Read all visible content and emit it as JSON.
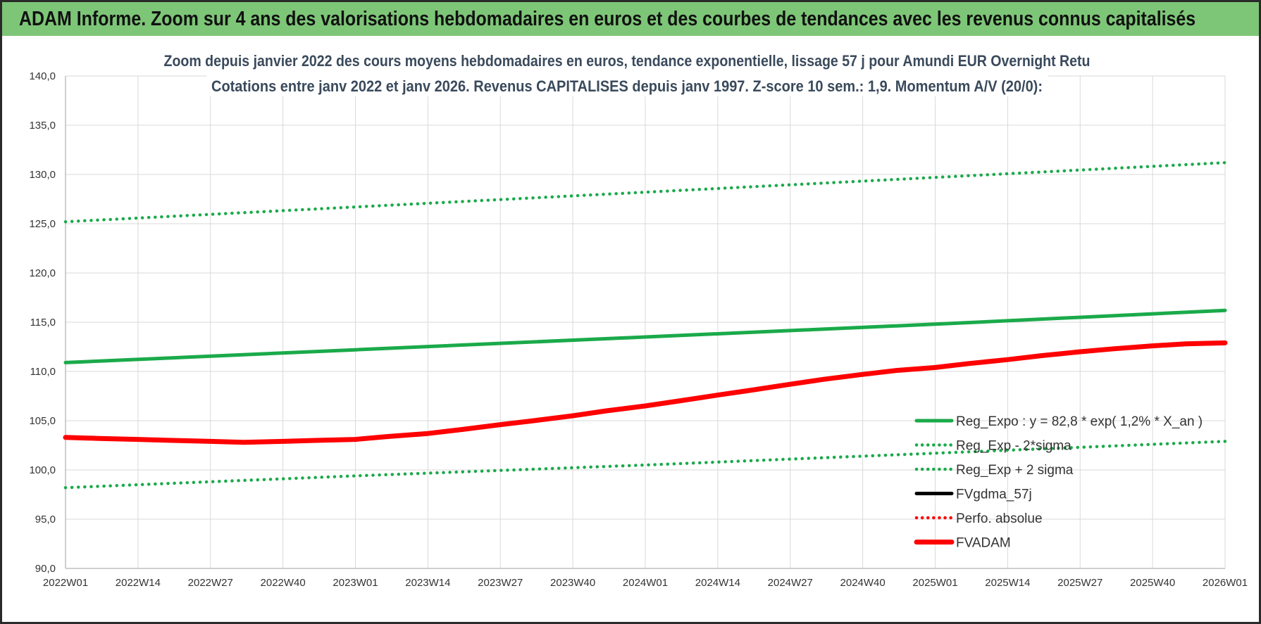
{
  "header": {
    "title": "ADAM Informe. Zoom sur 4 ans des valorisations hebdomadaires en euros et des courbes de tendances avec les revenus connus capitalisés"
  },
  "colors": {
    "header_bg": "#7dc677",
    "green": "#1aaa4a",
    "red": "#ff0000",
    "black": "#000000",
    "grid": "#d9d9d9"
  },
  "chart_data": {
    "type": "line",
    "title": "Zoom depuis janvier 2022 des cours moyens hebdomadaires en euros, tendance exponentielle, lissage 57 j pour Amundi EUR Overnight Retu",
    "subtitle": "Cotations entre janv 2022 et janv 2026. Revenus CAPITALISES depuis janv 1997. Z-score 10 sem.: 1,9. Momentum A/V (20/0):",
    "x_tick_labels": [
      "2022W01",
      "2022W14",
      "2022W27",
      "2022W40",
      "2023W01",
      "2023W14",
      "2023W27",
      "2023W40",
      "2024W01",
      "2024W14",
      "2024W27",
      "2024W40",
      "2025W01",
      "2025W14",
      "2025W27",
      "2025W40",
      "2026W01"
    ],
    "y_tick_labels": [
      "90,0",
      "95,0",
      "100,0",
      "105,0",
      "110,0",
      "115,0",
      "120,0",
      "125,0",
      "130,0",
      "135,0",
      "140,0"
    ],
    "ylim": [
      90,
      140
    ],
    "grid": true,
    "legend_position": "bottom-right",
    "series": [
      {
        "name": "Reg_Expo : y = 82,8 * exp( 1,2% *  X_an )",
        "color": "#1aaa4a",
        "style": "solid",
        "points": [
          [
            "2022W01",
            110.9
          ],
          [
            "2023W01",
            112.2
          ],
          [
            "2024W01",
            113.5
          ],
          [
            "2025W01",
            114.8
          ],
          [
            "2026W01",
            116.2
          ]
        ]
      },
      {
        "name": "Reg_Exp - 2*sigma",
        "color": "#1aaa4a",
        "style": "dotted",
        "points": [
          [
            "2022W01",
            98.2
          ],
          [
            "2023W01",
            99.4
          ],
          [
            "2024W01",
            100.5
          ],
          [
            "2025W01",
            101.7
          ],
          [
            "2026W01",
            102.9
          ]
        ]
      },
      {
        "name": "Reg_Exp + 2 sigma",
        "color": "#1aaa4a",
        "style": "dotted",
        "points": [
          [
            "2022W01",
            125.2
          ],
          [
            "2023W01",
            126.7
          ],
          [
            "2024W01",
            128.2
          ],
          [
            "2025W01",
            129.7
          ],
          [
            "2026W01",
            131.2
          ]
        ]
      },
      {
        "name": "FVgdma_57j",
        "color": "#000000",
        "style": "solid",
        "points": [
          [
            "2022W40",
            102.9
          ],
          [
            "2022W47",
            103.0
          ],
          [
            "2022W52",
            103.1
          ]
        ]
      },
      {
        "name": "Perfo. absolue",
        "color": "#ff0000",
        "style": "dotted",
        "points": []
      },
      {
        "name": "FVADAM",
        "color": "#ff0000",
        "style": "solid-thick",
        "points": [
          [
            "2022W01",
            103.3
          ],
          [
            "2022W07",
            103.2
          ],
          [
            "2022W14",
            103.1
          ],
          [
            "2022W20",
            103.0
          ],
          [
            "2022W27",
            102.9
          ],
          [
            "2022W33",
            102.8
          ],
          [
            "2022W40",
            102.9
          ],
          [
            "2022W46",
            103.0
          ],
          [
            "2023W01",
            103.1
          ],
          [
            "2023W07",
            103.4
          ],
          [
            "2023W14",
            103.7
          ],
          [
            "2023W20",
            104.1
          ],
          [
            "2023W27",
            104.6
          ],
          [
            "2023W33",
            105.0
          ],
          [
            "2023W40",
            105.5
          ],
          [
            "2023W46",
            106.0
          ],
          [
            "2024W01",
            106.5
          ],
          [
            "2024W07",
            107.0
          ],
          [
            "2024W14",
            107.6
          ],
          [
            "2024W20",
            108.1
          ],
          [
            "2024W27",
            108.7
          ],
          [
            "2024W33",
            109.2
          ],
          [
            "2024W40",
            109.7
          ],
          [
            "2024W46",
            110.1
          ],
          [
            "2025W01",
            110.4
          ],
          [
            "2025W07",
            110.8
          ],
          [
            "2025W14",
            111.2
          ],
          [
            "2025W20",
            111.6
          ],
          [
            "2025W27",
            112.0
          ],
          [
            "2025W33",
            112.3
          ],
          [
            "2025W40",
            112.6
          ],
          [
            "2025W46",
            112.8
          ],
          [
            "2026W01",
            112.9
          ]
        ]
      }
    ]
  }
}
